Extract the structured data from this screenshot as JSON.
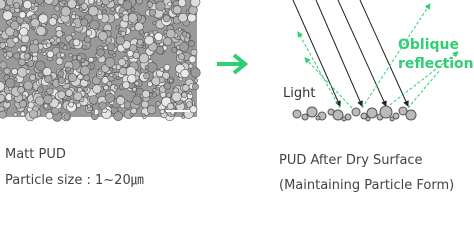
{
  "left": {
    "caption": [
      "Matt PUD",
      "Particle size : 1~20㎛"
    ]
  },
  "right": {
    "light_label": "Light",
    "reflection_label": [
      "Oblique",
      "reflection"
    ],
    "caption": [
      "PUD After Dry Surface",
      "(Maintaining Particle Form)"
    ]
  }
}
